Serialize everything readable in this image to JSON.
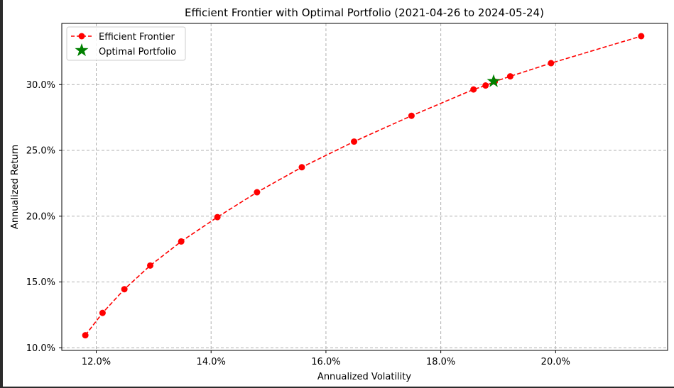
{
  "chart_data": {
    "type": "line",
    "title": "Efficient Frontier with Optimal Portfolio (2021-04-26 to 2024-05-24)",
    "xlabel": "Annualized Volatility",
    "ylabel": "Annualized Return",
    "xlim": [
      0.114,
      0.2195
    ],
    "ylim": [
      0.098,
      0.3465
    ],
    "x_ticks": [
      0.12,
      0.14,
      0.16,
      0.18,
      0.2
    ],
    "x_tick_labels": [
      "12.0%",
      "14.0%",
      "16.0%",
      "18.0%",
      "20.0%"
    ],
    "y_ticks": [
      0.1,
      0.15,
      0.2,
      0.25,
      0.3
    ],
    "y_tick_labels": [
      "10.0%",
      "15.0%",
      "20.0%",
      "25.0%",
      "30.0%"
    ],
    "grid": true,
    "legend_position": "top-left",
    "legend": [
      "Efficient Frontier",
      "Optimal Portfolio"
    ],
    "colors": {
      "frontier": "#ff0000",
      "optimal": "#008000",
      "grid": "#b0b0b0"
    },
    "series": [
      {
        "name": "Efficient Frontier",
        "style": "dashed-line-circle-markers",
        "x": [
          0.1181,
          0.1211,
          0.1249,
          0.1294,
          0.1348,
          0.1411,
          0.148,
          0.1558,
          0.1649,
          0.1749,
          0.1857,
          0.1878,
          0.1894,
          0.1921,
          0.1992,
          0.2149
        ],
        "y": [
          0.1095,
          0.1265,
          0.1445,
          0.1625,
          0.1808,
          0.1993,
          0.2182,
          0.2372,
          0.2567,
          0.2763,
          0.2963,
          0.2993,
          0.3023,
          0.3063,
          0.3163,
          0.3368
        ]
      },
      {
        "name": "Optimal Portfolio",
        "style": "star-marker",
        "x": [
          0.1892
        ],
        "y": [
          0.3025
        ]
      }
    ]
  }
}
